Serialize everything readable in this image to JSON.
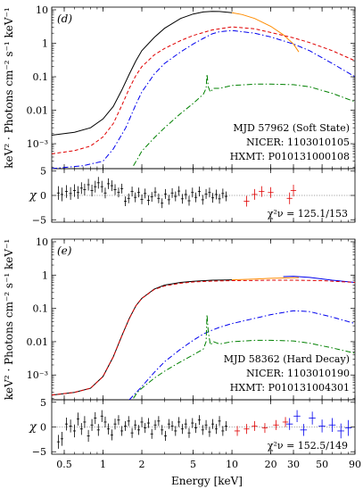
{
  "figure": {
    "x_axis_label": "Energy [keV]",
    "x_ticks": [
      "0.5",
      "1",
      "2",
      "5",
      "10",
      "20",
      "30",
      "50",
      "90"
    ]
  },
  "chart_data": [
    {
      "type": "line",
      "panel_tag": "(d)",
      "ylabel": "keV² · Photons cm⁻² s⁻¹ keV⁻¹",
      "xscale": "log",
      "yscale": "log",
      "xlim": [
        0.4,
        90
      ],
      "ylim": [
        0.00018,
        12
      ],
      "y_ticks": [
        "10",
        "1",
        "0.1",
        "0.01",
        "10⁻³"
      ],
      "annotation": [
        "MJD 57962 (Soft State)",
        "NICER: 1103010105",
        "HXMT: P010131000108"
      ],
      "series": [
        {
          "color": "#000000",
          "style": "solid",
          "x": [
            0.4,
            0.6,
            0.8,
            1.0,
            1.2,
            1.4,
            1.6,
            1.8,
            2,
            2.5,
            3,
            4,
            5,
            6,
            7,
            8,
            10
          ],
          "y": [
            0.0018,
            0.0022,
            0.003,
            0.0055,
            0.013,
            0.04,
            0.12,
            0.3,
            0.6,
            1.5,
            2.8,
            5.5,
            7.5,
            8.6,
            9.0,
            8.9,
            8.2
          ]
        },
        {
          "color": "#ff8c00",
          "style": "solid",
          "x": [
            10,
            12,
            15,
            20,
            25,
            30,
            33
          ],
          "y": [
            8.2,
            7.2,
            5.5,
            3.2,
            1.8,
            0.95,
            0.55
          ]
        },
        {
          "color": "#e00000",
          "style": "dashed",
          "x": [
            0.4,
            0.6,
            0.8,
            1.0,
            1.2,
            1.4,
            1.6,
            1.8,
            2,
            2.5,
            3,
            4,
            5,
            7,
            10,
            15,
            20,
            30,
            40,
            60,
            90
          ],
          "y": [
            0.0005,
            0.00062,
            0.00085,
            0.0016,
            0.004,
            0.014,
            0.045,
            0.11,
            0.2,
            0.45,
            0.7,
            1.2,
            1.7,
            2.5,
            3.1,
            2.7,
            2.1,
            1.45,
            1.05,
            0.6,
            0.3
          ]
        },
        {
          "color": "#0000ee",
          "style": "dashdot",
          "x": [
            0.4,
            0.7,
            1.0,
            1.2,
            1.5,
            1.8,
            2,
            2.5,
            3,
            4,
            5,
            6,
            7,
            8,
            10,
            15,
            20,
            30,
            40,
            60,
            90
          ],
          "y": [
            0.00018,
            0.00022,
            0.0003,
            0.0007,
            0.003,
            0.015,
            0.035,
            0.12,
            0.25,
            0.55,
            0.95,
            1.4,
            1.9,
            2.2,
            2.4,
            2.0,
            1.55,
            0.95,
            0.6,
            0.25,
            0.1
          ]
        },
        {
          "color": "#008000",
          "style": "dashdot",
          "x": [
            1.72,
            1.85,
            2,
            2.5,
            3,
            4,
            5,
            6,
            6.3,
            6.4,
            6.55,
            6.8,
            7.2,
            8,
            10,
            15,
            20,
            30,
            40,
            60,
            90
          ],
          "y": [
            0.00022,
            0.00035,
            0.0006,
            0.0015,
            0.003,
            0.008,
            0.016,
            0.03,
            0.045,
            0.12,
            0.05,
            0.035,
            0.045,
            0.045,
            0.055,
            0.06,
            0.06,
            0.058,
            0.05,
            0.032,
            0.018
          ]
        }
      ],
      "residuals": {
        "label": "χ",
        "ylim": [
          -5.5,
          5.5
        ],
        "y_ticks": [
          "5",
          "0",
          "−5"
        ],
        "stat_label": "χ²ν = 125.1/153",
        "nicer_color": "#000000",
        "hxmt_me_color": "#e00000",
        "nicer_points": {
          "x": [
            0.45,
            0.48,
            0.52,
            0.56,
            0.6,
            0.64,
            0.68,
            0.72,
            0.77,
            0.82,
            0.87,
            0.92,
            0.98,
            1.04,
            1.1,
            1.17,
            1.24,
            1.32,
            1.4,
            1.49,
            1.58,
            1.68,
            1.78,
            1.89,
            2.0,
            2.12,
            2.25,
            2.39,
            2.54,
            2.7,
            2.87,
            3.05,
            3.24,
            3.44,
            3.65,
            3.88,
            4.12,
            4.38,
            4.65,
            4.94,
            5.25,
            5.58,
            5.93,
            6.3,
            6.7,
            7.1,
            7.55,
            8.0,
            8.5,
            9.0
          ],
          "y": [
            0.5,
            0.2,
            0.8,
            0.4,
            1.0,
            0.6,
            1.5,
            1.2,
            2.2,
            1.0,
            1.8,
            2.6,
            1.8,
            0.5,
            2.4,
            2.0,
            1.2,
            0.6,
            1.4,
            -1.2,
            -0.6,
            0.8,
            -0.4,
            0.6,
            -0.8,
            0.4,
            -1.0,
            -0.3,
            0.7,
            -0.6,
            -1.6,
            0.3,
            -0.9,
            0.5,
            -0.2,
            0.9,
            -0.7,
            0.2,
            -1.1,
            0.6,
            -0.4,
            0.8,
            -0.9,
            0.3,
            0.6,
            -0.5,
            0.2,
            -0.7,
            0.4,
            -0.2
          ],
          "err": [
            1.4,
            1.4,
            1.3,
            1.3,
            1.3,
            1.3,
            1.2,
            1.2,
            1.2,
            1.2,
            1.2,
            1.2,
            1.2,
            1.1,
            1.1,
            1.1,
            1.1,
            1.0,
            1.0,
            1.0,
            1.0,
            1.0,
            1.0,
            1.0,
            1.0,
            1.0,
            1.0,
            1.0,
            1.0,
            1.0,
            1.0,
            1.0,
            1.0,
            1.0,
            1.0,
            1.0,
            1.0,
            1.0,
            1.0,
            1.0,
            1.0,
            1.0,
            1.0,
            1.0,
            1.0,
            1.0,
            1.0,
            1.0,
            1.0,
            1.0
          ]
        },
        "hxmt_points": {
          "x": [
            13,
            15,
            17,
            20,
            28,
            30
          ],
          "y": [
            -1.2,
            0.2,
            0.8,
            0.6,
            -0.6,
            1.0
          ],
          "err": [
            1.1,
            1.1,
            1.1,
            1.1,
            1.2,
            1.2
          ]
        }
      }
    },
    {
      "type": "line",
      "panel_tag": "(e)",
      "ylabel": "keV² · Photons cm⁻² s⁻¹ keV⁻¹",
      "xscale": "log",
      "yscale": "log",
      "xlim": [
        0.4,
        90
      ],
      "ylim": [
        0.00018,
        12
      ],
      "y_ticks": [
        "10",
        "1",
        "0.1",
        "0.01",
        "10⁻³"
      ],
      "annotation": [
        "MJD 58362 (Hard Decay)",
        "NICER: 1103010190",
        "HXMT: P010131004301"
      ],
      "series": [
        {
          "color": "#000000",
          "style": "solid",
          "x": [
            0.4,
            0.6,
            0.8,
            1.0,
            1.2,
            1.4,
            1.6,
            1.8,
            2,
            2.5,
            3,
            4,
            5,
            7,
            10
          ],
          "y": [
            0.00025,
            0.0003,
            0.0004,
            0.0009,
            0.0035,
            0.015,
            0.05,
            0.12,
            0.2,
            0.38,
            0.5,
            0.6,
            0.65,
            0.7,
            0.72
          ]
        },
        {
          "color": "#ff8c00",
          "style": "solid",
          "x": [
            10,
            15,
            20,
            30,
            33
          ],
          "y": [
            0.72,
            0.76,
            0.8,
            0.83,
            0.84
          ]
        },
        {
          "color": "#0000ee",
          "style": "solid",
          "x": [
            25,
            30,
            40,
            60,
            90
          ],
          "y": [
            0.9,
            0.92,
            0.85,
            0.7,
            0.6
          ]
        },
        {
          "color": "#e00000",
          "style": "dashed",
          "x": [
            0.4,
            0.6,
            0.8,
            1.0,
            1.2,
            1.4,
            1.6,
            1.8,
            2,
            2.5,
            3,
            4,
            5,
            7,
            10,
            15,
            20,
            30,
            50,
            90
          ],
          "y": [
            0.00025,
            0.0003,
            0.0004,
            0.0009,
            0.0035,
            0.015,
            0.05,
            0.12,
            0.2,
            0.37,
            0.47,
            0.57,
            0.62,
            0.66,
            0.68,
            0.69,
            0.7,
            0.7,
            0.68,
            0.6
          ]
        },
        {
          "color": "#0000ee",
          "style": "dashdot",
          "x": [
            1.6,
            2,
            2.5,
            3,
            4,
            5,
            6,
            7,
            8,
            10,
            15,
            20,
            30,
            40,
            60,
            90
          ],
          "y": [
            0.00018,
            0.00045,
            0.0012,
            0.0025,
            0.006,
            0.011,
            0.017,
            0.022,
            0.027,
            0.035,
            0.05,
            0.065,
            0.085,
            0.08,
            0.055,
            0.035
          ]
        },
        {
          "color": "#008000",
          "style": "dashdot",
          "x": [
            1.72,
            1.85,
            2,
            2.5,
            3,
            4,
            5,
            6,
            6.3,
            6.4,
            6.55,
            6.8,
            7.2,
            8,
            10,
            15,
            20,
            30,
            40,
            60,
            90
          ],
          "y": [
            0.0002,
            0.0003,
            0.0004,
            0.0008,
            0.0013,
            0.0025,
            0.004,
            0.006,
            0.01,
            0.065,
            0.02,
            0.008,
            0.01,
            0.0085,
            0.01,
            0.011,
            0.011,
            0.0105,
            0.009,
            0.0065,
            0.0045
          ]
        }
      ],
      "residuals": {
        "label": "χ",
        "ylim": [
          -5.5,
          5.5
        ],
        "y_ticks": [
          "5",
          "0",
          "−5"
        ],
        "stat_label": "χ²ν = 152.5/149",
        "nicer_color": "#000000",
        "hxmt_me_color": "#e00000",
        "hxmt_he_color": "#0000ee",
        "nicer_points": {
          "x": [
            0.45,
            0.48,
            0.52,
            0.56,
            0.6,
            0.64,
            0.68,
            0.72,
            0.77,
            0.82,
            0.87,
            0.92,
            0.98,
            1.04,
            1.1,
            1.17,
            1.24,
            1.32,
            1.4,
            1.49,
            1.58,
            1.68,
            1.78,
            1.89,
            2.0,
            2.12,
            2.25,
            2.39,
            2.54,
            2.7,
            2.87,
            3.05,
            3.24,
            3.44,
            3.65,
            3.88,
            4.12,
            4.38,
            4.65,
            4.94,
            5.25,
            5.58,
            5.93,
            6.3,
            6.7,
            7.1,
            7.55,
            8.0,
            8.5,
            9.0
          ],
          "y": [
            -3.0,
            -2.4,
            0.6,
            0.2,
            -0.8,
            1.6,
            -0.4,
            1.0,
            -1.8,
            0.4,
            1.8,
            -0.6,
            2.2,
            1.0,
            -0.4,
            -1.6,
            0.6,
            1.4,
            -0.8,
            0.2,
            1.2,
            -1.2,
            0.4,
            -0.6,
            1.0,
            -0.2,
            0.8,
            -1.4,
            0.4,
            1.2,
            -0.6,
            -1.8,
            0.6,
            0.2,
            -0.8,
            1.0,
            -0.4,
            0.6,
            -1.2,
            0.8,
            -0.2,
            1.4,
            -0.6,
            0.4,
            -1.0,
            0.6,
            -0.4,
            1.2,
            -0.8,
            0.2
          ],
          "err": [
            1.4,
            1.4,
            1.3,
            1.3,
            1.3,
            1.3,
            1.2,
            1.2,
            1.2,
            1.2,
            1.2,
            1.2,
            1.2,
            1.1,
            1.1,
            1.1,
            1.1,
            1.0,
            1.0,
            1.0,
            1.0,
            1.0,
            1.0,
            1.0,
            1.0,
            1.0,
            1.0,
            1.0,
            1.0,
            1.0,
            1.0,
            1.0,
            1.0,
            1.0,
            1.0,
            1.0,
            1.0,
            1.0,
            1.0,
            1.0,
            1.0,
            1.0,
            1.0,
            1.0,
            1.0,
            1.0,
            1.0,
            1.0,
            1.0,
            1.0
          ]
        },
        "hxmt_points": {
          "x": [
            11,
            13,
            15,
            18,
            22,
            26
          ],
          "y": [
            -0.8,
            -0.4,
            0.2,
            -0.2,
            0.4,
            1.0
          ],
          "err": [
            1.0,
            1.0,
            1.0,
            1.0,
            1.0,
            1.0
          ]
        },
        "hxmt_he_points": {
          "x": [
            28,
            32,
            36,
            42,
            50,
            60,
            70,
            80
          ],
          "y": [
            0.6,
            2.2,
            -0.6,
            1.8,
            0.2,
            0.4,
            -0.8,
            -0.2
          ],
          "err": [
            1.2,
            1.2,
            1.2,
            1.3,
            1.3,
            1.4,
            1.5,
            1.6
          ]
        }
      }
    }
  ]
}
